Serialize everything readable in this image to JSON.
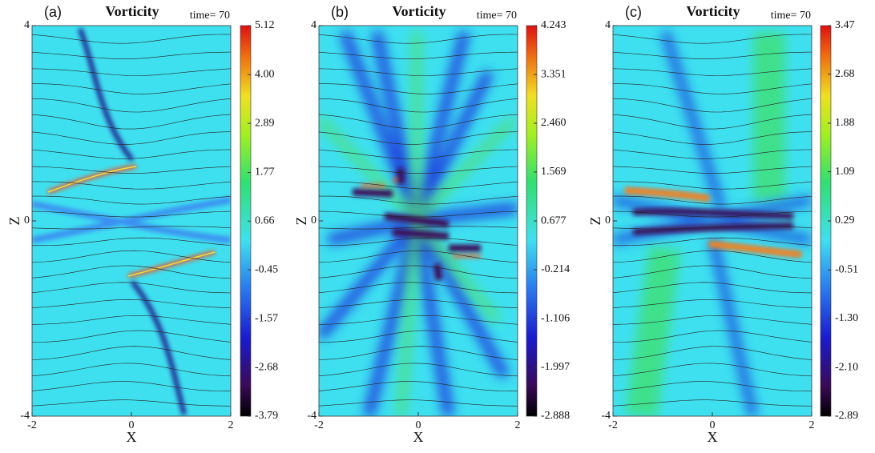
{
  "charts": [
    {
      "type": "heatmap",
      "panel": "(a)",
      "title": "Vorticity",
      "time": "time= 70",
      "xlabel": "X",
      "ylabel": "Z",
      "xlim": [
        -2,
        2
      ],
      "xticks": [
        -2,
        0,
        2
      ],
      "ylim": [
        -4,
        4
      ],
      "yticks": [
        -4,
        0,
        4
      ],
      "clim": [
        -3.79,
        5.12
      ],
      "cticks": [
        5.12,
        {
          "value": 4,
          "label": "4.00"
        },
        2.89,
        1.77,
        0.66,
        -0.45,
        -1.57,
        -2.68,
        -3.79
      ]
    },
    {
      "type": "heatmap",
      "panel": "(b)",
      "title": "Vorticity",
      "time": "time= 70",
      "xlabel": "X",
      "ylabel": "Z",
      "xlim": [
        -2,
        2
      ],
      "xticks": [
        -2,
        0,
        2
      ],
      "ylim": [
        -4,
        4
      ],
      "yticks": [
        -4,
        0,
        4
      ],
      "clim": [
        -2.888,
        4.243
      ],
      "cticks": [
        4.243,
        3.351,
        {
          "value": 2.46,
          "label": "2.460"
        },
        1.569,
        0.677,
        -0.214,
        -1.106,
        -1.997,
        -2.888
      ]
    },
    {
      "type": "heatmap",
      "panel": "(c)",
      "title": "Vorticity",
      "time": "time= 70",
      "xlabel": "X",
      "ylabel": "Z",
      "xlim": [
        -2,
        2
      ],
      "xticks": [
        -2,
        0,
        2
      ],
      "ylim": [
        -4,
        4
      ],
      "yticks": [
        -4,
        0,
        4
      ],
      "clim": [
        -2.89,
        3.47
      ],
      "cticks": [
        3.47,
        2.68,
        1.88,
        1.09,
        0.29,
        -0.51,
        {
          "value": -1.3,
          "label": "-1.30"
        },
        {
          "value": -2.1,
          "label": "-2.10"
        },
        -2.89
      ]
    }
  ]
}
